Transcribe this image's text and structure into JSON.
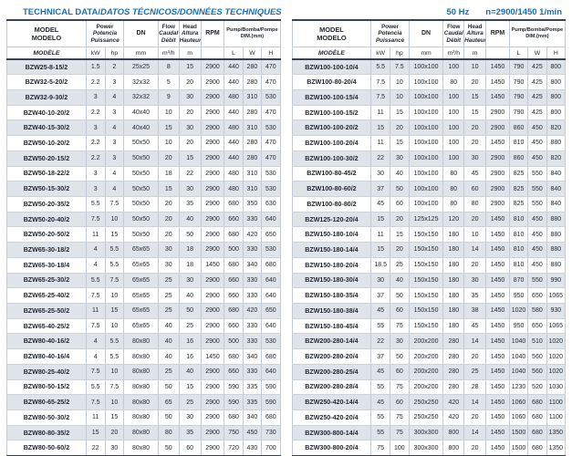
{
  "titles": {
    "en": "TECHNICAL DATA/",
    "es_fr": "DATOS TÉCNICOS/DONNÉES TECHNIQUES",
    "freq": "50 Hz",
    "speed": "n=2900/1450 1/min"
  },
  "colors": {
    "accent_blue": "#1a6fb0",
    "row_shade": "#dfe4eb",
    "border_dark": "#3c4350",
    "grid_light": "#c3cad3"
  },
  "header": {
    "model": [
      "MODEL",
      "MODELO",
      "MODÈLE"
    ],
    "power": [
      "Power",
      "Potencia",
      "Puissance"
    ],
    "dn": "DN",
    "flow": [
      "Flow",
      "Caudal",
      "Débit"
    ],
    "head": [
      "Head",
      "Altura",
      "Hauteur"
    ],
    "rpm": "RPM",
    "dim": [
      "Pump/Bomba/Pompe",
      "DIM.(mm)"
    ],
    "units": {
      "kw": "kW",
      "hp": "hp",
      "dn": "mm",
      "flow": "m³/h",
      "head": "m",
      "rpm": "",
      "l": "L",
      "w": "W",
      "h": "H"
    }
  },
  "table_left": {
    "rows": [
      [
        "BZW25-8-15/2",
        "1.5",
        "2",
        "25x25",
        "8",
        "15",
        "2900",
        "440",
        "280",
        "470"
      ],
      [
        "BZW32-5-20/2",
        "2.2",
        "3",
        "32x32",
        "5",
        "20",
        "2900",
        "440",
        "280",
        "470"
      ],
      [
        "BZW32-9-30/2",
        "3",
        "4",
        "32x32",
        "9",
        "30",
        "2900",
        "480",
        "310",
        "530"
      ],
      [
        "BZW40-10-20/2",
        "2.2",
        "3",
        "40x40",
        "10",
        "20",
        "2900",
        "440",
        "280",
        "470"
      ],
      [
        "BZW40-15-30/2",
        "3",
        "4",
        "40x40",
        "15",
        "30",
        "2900",
        "480",
        "310",
        "530"
      ],
      [
        "BZW50-10-20/2",
        "2.2",
        "3",
        "50x50",
        "10",
        "20",
        "2900",
        "440",
        "280",
        "470"
      ],
      [
        "BZW50-20-15/2",
        "2.2",
        "3",
        "50x50",
        "20",
        "15",
        "2900",
        "440",
        "280",
        "470"
      ],
      [
        "BZW50-18-22/2",
        "3",
        "4",
        "50x50",
        "18",
        "22",
        "2900",
        "480",
        "310",
        "530"
      ],
      [
        "BZW50-15-30/2",
        "3",
        "4",
        "50x50",
        "15",
        "30",
        "2900",
        "480",
        "310",
        "530"
      ],
      [
        "BZW50-20-35/2",
        "5.5",
        "7.5",
        "50x50",
        "20",
        "35",
        "2900",
        "680",
        "350",
        "630"
      ],
      [
        "BZW50-20-40/2",
        "7.5",
        "10",
        "50x50",
        "20",
        "40",
        "2900",
        "660",
        "330",
        "640"
      ],
      [
        "BZW50-20-50/2",
        "11",
        "15",
        "50x50",
        "20",
        "50",
        "2900",
        "680",
        "420",
        "650"
      ],
      [
        "BZW65-30-18/2",
        "4",
        "5.5",
        "65x65",
        "30",
        "18",
        "2900",
        "500",
        "330",
        "530"
      ],
      [
        "BZW65-30-18/4",
        "4",
        "5.5",
        "65x65",
        "30",
        "18",
        "1450",
        "680",
        "340",
        "680"
      ],
      [
        "BZW65-25-30/2",
        "5.5",
        "7.5",
        "65x65",
        "25",
        "30",
        "2900",
        "660",
        "330",
        "640"
      ],
      [
        "BZW65-25-40/2",
        "7.5",
        "10",
        "65x65",
        "25",
        "40",
        "2900",
        "660",
        "330",
        "640"
      ],
      [
        "BZW65-25-50/2",
        "11",
        "15",
        "65x65",
        "25",
        "50",
        "2900",
        "680",
        "420",
        "650"
      ],
      [
        "BZW65-40-25/2",
        "7.5",
        "10",
        "65x65",
        "40",
        "25",
        "2900",
        "660",
        "330",
        "640"
      ],
      [
        "BZW80-40-16/2",
        "4",
        "5.5",
        "80x80",
        "40",
        "16",
        "2900",
        "500",
        "330",
        "530"
      ],
      [
        "BZW80-40-16/4",
        "4",
        "5.5",
        "80x80",
        "40",
        "16",
        "1450",
        "680",
        "340",
        "680"
      ],
      [
        "BZW80-25-40/2",
        "7.5",
        "10",
        "80x80",
        "25",
        "40",
        "2900",
        "660",
        "330",
        "640"
      ],
      [
        "BZW80-50-15/2",
        "5.5",
        "7.5",
        "80x80",
        "50",
        "15",
        "2900",
        "590",
        "335",
        "590"
      ],
      [
        "BZW80-65-25/2",
        "7.5",
        "10",
        "80x80",
        "65",
        "25",
        "2900",
        "590",
        "335",
        "590"
      ],
      [
        "BZW80-50-30/2",
        "11",
        "15",
        "80x80",
        "50",
        "30",
        "2900",
        "680",
        "340",
        "680"
      ],
      [
        "BZW80-80-35/2",
        "15",
        "20",
        "80x80",
        "80",
        "35",
        "2900",
        "750",
        "450",
        "730"
      ],
      [
        "BZW80-50-60/2",
        "22",
        "30",
        "80x80",
        "50",
        "60",
        "2900",
        "720",
        "430",
        "700"
      ]
    ]
  },
  "table_right": {
    "rows": [
      [
        "BZW100-100-10/4",
        "5.5",
        "7.5",
        "100x100",
        "100",
        "10",
        "1450",
        "790",
        "425",
        "800"
      ],
      [
        "BZW100-80-20/4",
        "7.5",
        "10",
        "100x100",
        "80",
        "20",
        "1450",
        "790",
        "425",
        "800"
      ],
      [
        "BZW100-100-15/4",
        "7.5",
        "10",
        "100x100",
        "100",
        "15",
        "1450",
        "790",
        "425",
        "800"
      ],
      [
        "BZW100-100-15/2",
        "11",
        "15",
        "100x100",
        "100",
        "15",
        "2900",
        "790",
        "425",
        "800"
      ],
      [
        "BZW100-100-20/2",
        "15",
        "20",
        "100x100",
        "100",
        "20",
        "2900",
        "860",
        "450",
        "820"
      ],
      [
        "BZW100-100-20/4",
        "11",
        "15",
        "100x100",
        "100",
        "20",
        "1450",
        "810",
        "450",
        "880"
      ],
      [
        "BZW100-100-30/2",
        "22",
        "30",
        "100x100",
        "100",
        "30",
        "2900",
        "860",
        "450",
        "820"
      ],
      [
        "BZW100-80-45/2",
        "30",
        "40",
        "100x100",
        "80",
        "45",
        "2900",
        "825",
        "550",
        "840"
      ],
      [
        "BZW100-80-60/2",
        "37",
        "50",
        "100x100",
        "80",
        "60",
        "2900",
        "825",
        "550",
        "840"
      ],
      [
        "BZW100-80-80/2",
        "45",
        "60",
        "100x100",
        "80",
        "80",
        "2900",
        "825",
        "550",
        "840"
      ],
      [
        "BZW125-120-20/4",
        "15",
        "20",
        "125x125",
        "120",
        "20",
        "1450",
        "810",
        "450",
        "880"
      ],
      [
        "BZW150-180-10/4",
        "11",
        "15",
        "150x150",
        "180",
        "10",
        "1450",
        "810",
        "450",
        "880"
      ],
      [
        "BZW150-180-14/4",
        "15",
        "20",
        "150x150",
        "180",
        "14",
        "1450",
        "810",
        "450",
        "880"
      ],
      [
        "BZW150-180-20/4",
        "18.5",
        "25",
        "150x150",
        "180",
        "20",
        "1450",
        "810",
        "450",
        "880"
      ],
      [
        "BZW150-180-30/4",
        "30",
        "40",
        "150x150",
        "180",
        "30",
        "1450",
        "870",
        "550",
        "990"
      ],
      [
        "BZW150-180-35/4",
        "37",
        "50",
        "150x150",
        "180",
        "35",
        "1450",
        "950",
        "650",
        "1065"
      ],
      [
        "BZW150-180-38/4",
        "45",
        "60",
        "150x150",
        "180",
        "38",
        "1450",
        "1020",
        "580",
        "930"
      ],
      [
        "BZW150-180-45/4",
        "55",
        "75",
        "150x150",
        "180",
        "45",
        "1450",
        "950",
        "650",
        "1065"
      ],
      [
        "BZW200-280-14/4",
        "22",
        "30",
        "200x200",
        "280",
        "14",
        "1450",
        "1040",
        "510",
        "1020"
      ],
      [
        "BZW200-280-20/4",
        "37",
        "50",
        "200x200",
        "280",
        "20",
        "1450",
        "1040",
        "560",
        "1020"
      ],
      [
        "BZW200-280-25/4",
        "45",
        "60",
        "200x200",
        "280",
        "25",
        "1450",
        "1040",
        "560",
        "1020"
      ],
      [
        "BZW200-280-28/4",
        "55",
        "75",
        "200x200",
        "280",
        "28",
        "1450",
        "1230",
        "520",
        "1030"
      ],
      [
        "BZW250-420-14/4",
        "45",
        "60",
        "250x250",
        "420",
        "14",
        "1450",
        "1060",
        "680",
        "1100"
      ],
      [
        "BZW250-420-20/4",
        "55",
        "75",
        "250x250",
        "420",
        "20",
        "1450",
        "1060",
        "680",
        "1100"
      ],
      [
        "BZW300-800-14/4",
        "55",
        "75",
        "300x300",
        "800",
        "14",
        "1450",
        "1500",
        "680",
        "1350"
      ],
      [
        "BZW300-800-20/4",
        "75",
        "100",
        "300x300",
        "800",
        "20",
        "1450",
        "1500",
        "680",
        "1350"
      ]
    ]
  }
}
